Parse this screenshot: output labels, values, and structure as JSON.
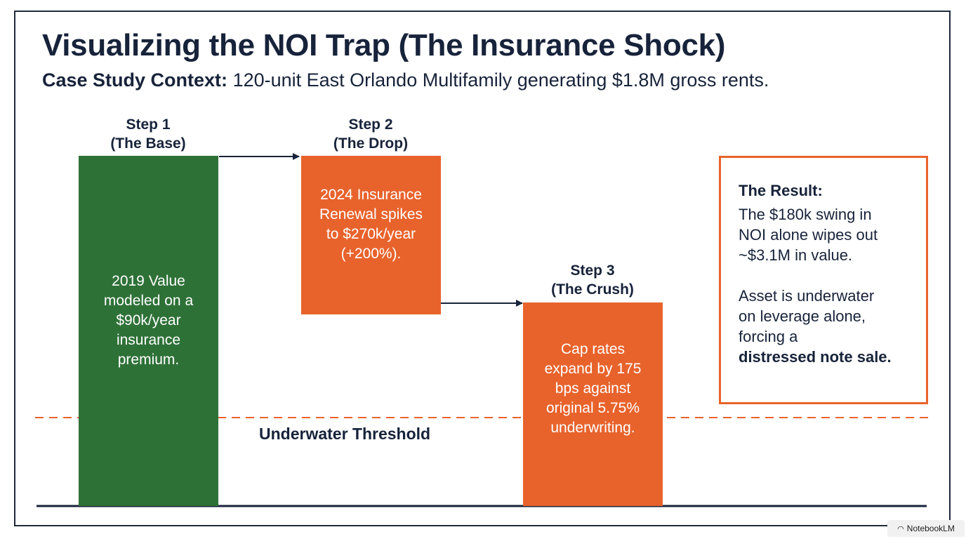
{
  "title": "Visualizing the NOI Trap (The Insurance Shock)",
  "subtitle": {
    "label": "Case Study Context:",
    "text": "120-unit East Orlando Multifamily generating $1.8M gross rents."
  },
  "steps": [
    {
      "heading": [
        "Step 1",
        "(The Base)"
      ],
      "body": [
        "2019 Value",
        "modeled on a",
        "$90k/year",
        "insurance",
        "premium."
      ],
      "color": "#2e7137"
    },
    {
      "heading": [
        "Step 2",
        "(The Drop)"
      ],
      "body": [
        "2024 Insurance",
        "Renewal spikes",
        "to $270k/year",
        "(+200%)."
      ],
      "color": "#e8632c"
    },
    {
      "heading": [
        "Step 3",
        "(The Crush)"
      ],
      "body": [
        "Cap rates",
        "expand by 175",
        "bps against",
        "original 5.75%",
        "underwriting."
      ],
      "color": "#e8632c"
    }
  ],
  "threshold_label": "Underwater Threshold",
  "result": {
    "title": "The Result:",
    "para1": [
      "The $180k swing in",
      "NOI alone wipes out",
      "~$3.1M in value."
    ],
    "para2": [
      "Asset is underwater",
      "on leverage alone,",
      "forcing a"
    ],
    "para2_bold": "distressed note sale."
  },
  "watermark": "NotebookLM",
  "colors": {
    "navy": "#17233a",
    "green": "#2e7137",
    "orange": "#e8632c"
  }
}
